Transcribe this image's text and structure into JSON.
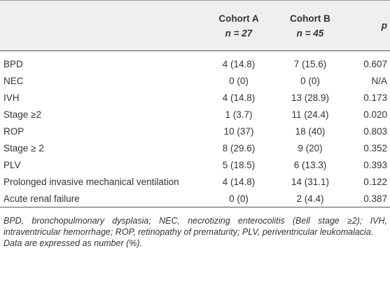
{
  "header": {
    "columns": [
      {
        "label": "Cohort A",
        "sub": "n = 27"
      },
      {
        "label": "Cohort B",
        "sub": "n = 45"
      },
      {
        "label": "p"
      }
    ]
  },
  "table": {
    "rows": [
      [
        "BPD",
        "4 (14.8)",
        "7 (15.6)",
        "0.607"
      ],
      [
        "NEC",
        "0 (0)",
        "0 (0)",
        "N/A"
      ],
      [
        "IVH",
        "4 (14.8)",
        "13 (28.9)",
        "0.173"
      ],
      [
        "Stage ≥2",
        "1 (3.7)",
        "11 (24.4)",
        "0.020"
      ],
      [
        "ROP",
        "10 (37)",
        "18 (40)",
        "0.803"
      ],
      [
        "Stage ≥ 2",
        "8 (29.6)",
        "9 (20)",
        "0.352"
      ],
      [
        "PLV",
        "5 (18.5)",
        "6 (13.3)",
        "0.393"
      ],
      [
        "Prolonged invasive mechanical ventilation",
        "4 (14.8)",
        "14 (31.1)",
        "0.122"
      ],
      [
        "Acute renal failure",
        "0 (0)",
        "2 (4.4)",
        "0.387"
      ]
    ]
  },
  "footnotes": [
    "BPD, bronchopulmonary dysplasia; NEC, necrotizing enterocolitis (Bell stage ≥2); IVH, intraventricular hemorrhage; ROP, retinopathy of prematurity; PLV, periventricular leukomalacia.",
    "Data are expressed as number (%)."
  ]
}
